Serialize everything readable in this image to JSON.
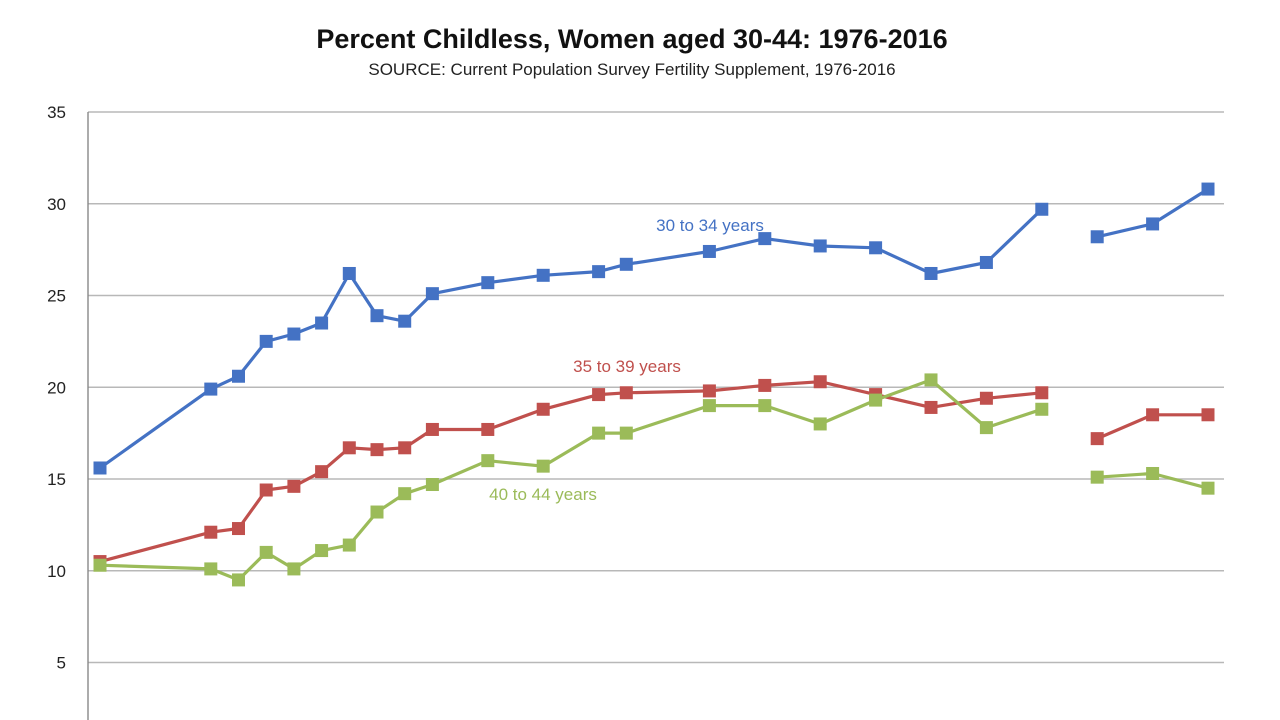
{
  "chart_data": {
    "type": "line",
    "title": "Percent Childless, Women aged 30-44: 1976-2016",
    "subtitle": "SOURCE: Current Population Survey Fertility Supplement, 1976-2016",
    "xlabel": "",
    "ylabel": "",
    "ylim": [
      0,
      35
    ],
    "yticks": [
      5,
      10,
      15,
      20,
      25,
      30,
      35
    ],
    "xlim": [
      1975.5,
      2016.5
    ],
    "grid": true,
    "legend": "none",
    "series": [
      {
        "name": "30 to 34 years",
        "color": "#4472c4",
        "points": [
          [
            1976,
            15.6
          ],
          [
            1980,
            19.9
          ],
          [
            1981,
            20.6
          ],
          [
            1982,
            22.5
          ],
          [
            1983,
            22.9
          ],
          [
            1984,
            23.5
          ],
          [
            1985,
            26.2
          ],
          [
            1986,
            23.9
          ],
          [
            1987,
            23.6
          ],
          [
            1988,
            25.1
          ],
          [
            1990,
            25.7
          ],
          [
            1992,
            26.1
          ],
          [
            1994,
            26.3
          ],
          [
            1995,
            26.7
          ],
          [
            1998,
            27.4
          ],
          [
            2000,
            28.1
          ],
          [
            2002,
            27.7
          ],
          [
            2004,
            27.6
          ],
          [
            2006,
            26.2
          ],
          [
            2008,
            26.8
          ],
          [
            2010,
            29.7
          ],
          null,
          [
            2012,
            28.2
          ],
          [
            2014,
            28.9
          ],
          [
            2016,
            30.8
          ]
        ]
      },
      {
        "name": "35 to 39 years",
        "color": "#c0504d",
        "points": [
          [
            1976,
            10.5
          ],
          [
            1980,
            12.1
          ],
          [
            1981,
            12.3
          ],
          [
            1982,
            14.4
          ],
          [
            1983,
            14.6
          ],
          [
            1984,
            15.4
          ],
          [
            1985,
            16.7
          ],
          [
            1986,
            16.6
          ],
          [
            1987,
            16.7
          ],
          [
            1988,
            17.7
          ],
          [
            1990,
            17.7
          ],
          [
            1992,
            18.8
          ],
          [
            1994,
            19.6
          ],
          [
            1995,
            19.7
          ],
          [
            1998,
            19.8
          ],
          [
            2000,
            20.1
          ],
          [
            2002,
            20.3
          ],
          [
            2004,
            19.6
          ],
          [
            2006,
            18.9
          ],
          [
            2008,
            19.4
          ],
          [
            2010,
            19.7
          ],
          null,
          [
            2012,
            17.2
          ],
          [
            2014,
            18.5
          ],
          [
            2016,
            18.5
          ]
        ]
      },
      {
        "name": "40 to 44 years",
        "color": "#9bbb59",
        "points": [
          [
            1976,
            10.3
          ],
          [
            1980,
            10.1
          ],
          [
            1981,
            9.5
          ],
          [
            1982,
            11.0
          ],
          [
            1983,
            10.1
          ],
          [
            1984,
            11.1
          ],
          [
            1985,
            11.4
          ],
          [
            1986,
            13.2
          ],
          [
            1987,
            14.2
          ],
          [
            1988,
            14.7
          ],
          [
            1990,
            16.0
          ],
          [
            1992,
            15.7
          ],
          [
            1994,
            17.5
          ],
          [
            1995,
            17.5
          ],
          [
            1998,
            19.0
          ],
          [
            2000,
            19.0
          ],
          [
            2002,
            18.0
          ],
          [
            2004,
            19.3
          ],
          [
            2006,
            20.4
          ],
          [
            2008,
            17.8
          ],
          [
            2010,
            18.8
          ],
          null,
          [
            2012,
            15.1
          ],
          [
            2014,
            15.3
          ],
          [
            2016,
            14.5
          ]
        ]
      }
    ]
  }
}
